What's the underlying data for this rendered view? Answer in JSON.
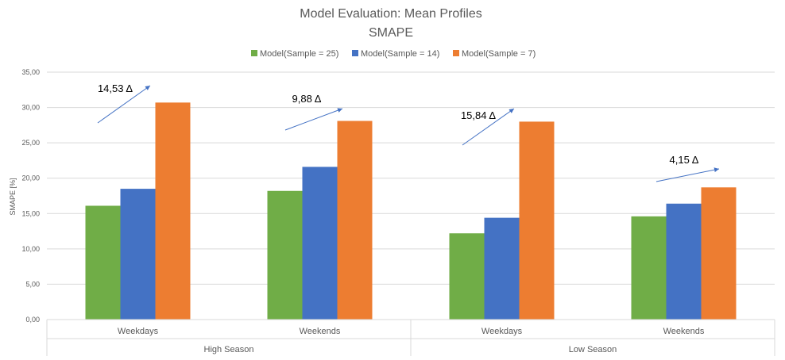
{
  "chart_data": {
    "type": "bar",
    "title": "Model Evaluation: Mean Profiles",
    "subtitle": "SMAPE",
    "ylabel": "SMAPE [%]",
    "xlabel": "",
    "ylim": [
      0,
      35
    ],
    "ytick_step": 5,
    "ytick_labels": [
      "0,00",
      "5,00",
      "10,00",
      "15,00",
      "20,00",
      "25,00",
      "30,00",
      "35,00"
    ],
    "grid": true,
    "legend_position": "top",
    "groups": [
      {
        "label": "High Season",
        "categories": [
          "Weekdays",
          "Weekends"
        ]
      },
      {
        "label": "Low Season",
        "categories": [
          "Weekdays",
          "Weekends"
        ]
      }
    ],
    "categories": [
      "Weekdays",
      "Weekends",
      "Weekdays",
      "Weekends"
    ],
    "series": [
      {
        "name": "Model(Sample = 25)",
        "color": "#70AD47",
        "values": [
          16.1,
          18.2,
          12.2,
          14.6
        ]
      },
      {
        "name": "Model(Sample = 14)",
        "color": "#4472C4",
        "values": [
          18.5,
          21.6,
          14.4,
          16.4
        ]
      },
      {
        "name": "Model(Sample = 7)",
        "color": "#ED7D31",
        "values": [
          30.7,
          28.1,
          28.0,
          18.7
        ]
      }
    ],
    "annotations": [
      "14,53 Δ",
      "9,88 Δ",
      "15,84 Δ",
      "4,15 Δ"
    ],
    "colors": {
      "axis_text": "#595959",
      "grid": "#D9D9D9",
      "arrow": "#4472C4"
    }
  }
}
